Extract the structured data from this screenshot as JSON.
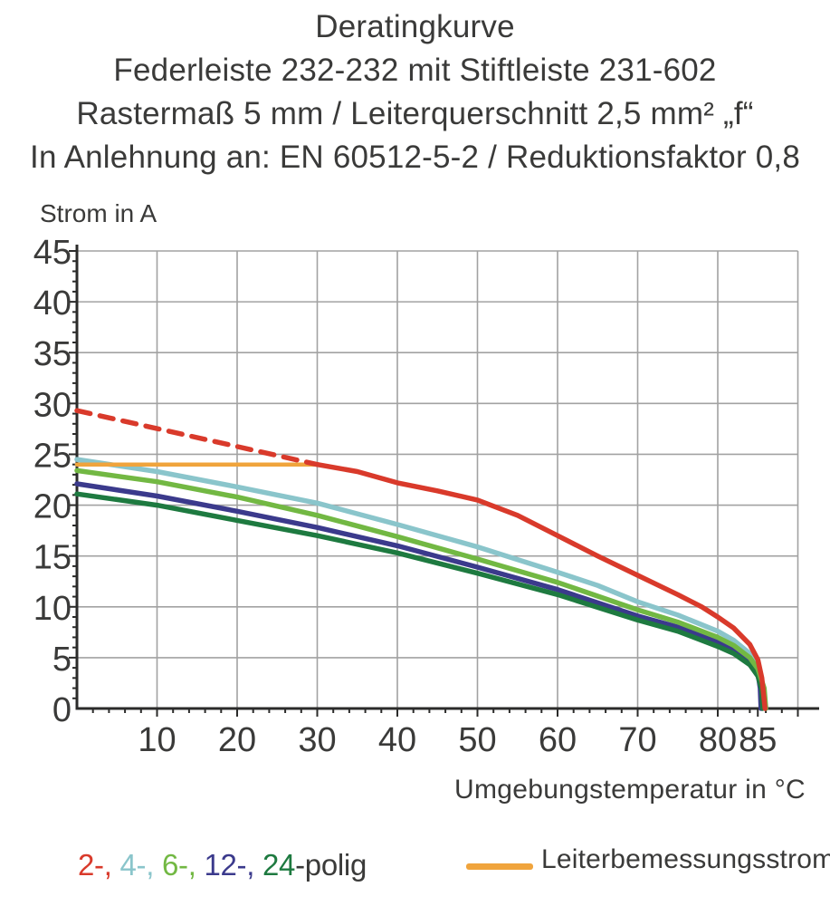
{
  "header": {
    "title": "Deratingkurve",
    "line2": "Federleiste 232-232 mit Stiftleiste 231-602",
    "line3": "Rastermaß 5 mm / Leiterquerschnitt 2,5 mm² „f“",
    "line4": "In Anlehnung an: EN 60512-5-2 / Reduktionsfaktor 0,8"
  },
  "chart_data": {
    "type": "line",
    "title": "Deratingkurve",
    "xlabel": "Umgebungstemperatur in °C",
    "ylabel": "Strom in A",
    "xlim": [
      0,
      90
    ],
    "ylim": [
      0,
      45
    ],
    "x_ticks": [
      10,
      20,
      30,
      40,
      50,
      60,
      70,
      80,
      85
    ],
    "y_ticks": [
      0,
      5,
      10,
      15,
      20,
      25,
      30,
      35,
      40,
      45
    ],
    "x_gridlines": [
      10,
      20,
      30,
      40,
      50,
      60,
      70,
      80,
      90
    ],
    "y_gridlines": [
      5,
      10,
      15,
      20,
      25,
      30,
      35,
      40,
      45
    ],
    "x_minor_step": 2,
    "y_minor_step": 1,
    "grid": true,
    "grid_color": "#a2a2a2",
    "axis_color": "#2b2b2a",
    "text_color": "#3a3a39",
    "legend_position": "bottom",
    "series": [
      {
        "id": "4-polig",
        "name": "4-polig",
        "color": "#8ac5cb",
        "dashed": false,
        "points": [
          [
            0,
            24.5
          ],
          [
            10,
            23.3
          ],
          [
            20,
            21.8
          ],
          [
            30,
            20.2
          ],
          [
            40,
            18.1
          ],
          [
            50,
            15.9
          ],
          [
            60,
            13.4
          ],
          [
            65,
            12.1
          ],
          [
            70,
            10.5
          ],
          [
            75,
            9.2
          ],
          [
            80,
            7.6
          ],
          [
            82,
            6.7
          ],
          [
            84,
            5.4
          ],
          [
            85,
            4.2
          ],
          [
            85.4,
            2.5
          ],
          [
            85.5,
            0
          ]
        ]
      },
      {
        "id": "12-polig",
        "name": "12-polig",
        "color": "#3b3a8c",
        "dashed": false,
        "points": [
          [
            0,
            22.1
          ],
          [
            10,
            20.9
          ],
          [
            20,
            19.4
          ],
          [
            30,
            17.8
          ],
          [
            40,
            16.0
          ],
          [
            50,
            13.9
          ],
          [
            60,
            11.7
          ],
          [
            70,
            9.1
          ],
          [
            75,
            8.0
          ],
          [
            80,
            6.5
          ],
          [
            82,
            5.7
          ],
          [
            84,
            4.6
          ],
          [
            85,
            3.5
          ],
          [
            85.3,
            2.0
          ],
          [
            85.4,
            0
          ]
        ]
      },
      {
        "id": "24-polig",
        "name": "24-polig",
        "color": "#1e7a40",
        "dashed": false,
        "points": [
          [
            0,
            21.1
          ],
          [
            10,
            20.0
          ],
          [
            20,
            18.5
          ],
          [
            30,
            17.0
          ],
          [
            40,
            15.3
          ],
          [
            50,
            13.3
          ],
          [
            60,
            11.2
          ],
          [
            70,
            8.7
          ],
          [
            75,
            7.6
          ],
          [
            80,
            6.1
          ],
          [
            82,
            5.4
          ],
          [
            84,
            4.3
          ],
          [
            85,
            3.2
          ],
          [
            85.5,
            1.8
          ],
          [
            85.6,
            0
          ]
        ]
      },
      {
        "id": "6-polig",
        "name": "6-polig",
        "color": "#72b843",
        "dashed": false,
        "points": [
          [
            0,
            23.4
          ],
          [
            10,
            22.3
          ],
          [
            20,
            20.8
          ],
          [
            30,
            19.0
          ],
          [
            40,
            16.9
          ],
          [
            50,
            14.7
          ],
          [
            60,
            12.4
          ],
          [
            70,
            9.7
          ],
          [
            75,
            8.5
          ],
          [
            80,
            7.0
          ],
          [
            82,
            6.2
          ],
          [
            84,
            5.0
          ],
          [
            85,
            3.9
          ],
          [
            85.8,
            2.0
          ],
          [
            86,
            0
          ]
        ]
      },
      {
        "id": "leiterbemessungsstrom",
        "name": "Leiterbemessungsstrom",
        "color": "#f0a43c",
        "dashed": false,
        "width": 4.5,
        "points": [
          [
            0,
            24
          ],
          [
            30,
            24
          ]
        ]
      },
      {
        "id": "2-polig-gestrichelt",
        "name": "2-polig (gestrichelt)",
        "color": "#d93a2b",
        "dashed": true,
        "points": [
          [
            0,
            29.3
          ],
          [
            30,
            24
          ]
        ]
      },
      {
        "id": "2-polig",
        "name": "2-polig",
        "color": "#d93a2b",
        "dashed": false,
        "points": [
          [
            30,
            24
          ],
          [
            35,
            23.3
          ],
          [
            40,
            22.2
          ],
          [
            45,
            21.4
          ],
          [
            50,
            20.5
          ],
          [
            55,
            19.0
          ],
          [
            60,
            17.0
          ],
          [
            65,
            15.0
          ],
          [
            70,
            13.1
          ],
          [
            75,
            11.2
          ],
          [
            78,
            10.0
          ],
          [
            80,
            9.0
          ],
          [
            82,
            7.9
          ],
          [
            84,
            6.3
          ],
          [
            85,
            4.8
          ],
          [
            85.5,
            3.0
          ],
          [
            85.9,
            0
          ]
        ]
      }
    ]
  },
  "legend": {
    "poles": {
      "segments": [
        {
          "text": "2-, ",
          "color": "#d93a2b"
        },
        {
          "text": "4-, ",
          "color": "#8ac5cb"
        },
        {
          "text": "6-, ",
          "color": "#72b843"
        },
        {
          "text": "12-, ",
          "color": "#3b3a8c"
        },
        {
          "text": "24",
          "color": "#1e7a40"
        },
        {
          "text": "-polig",
          "color": "#3a3a39"
        }
      ]
    },
    "rated_current": {
      "label": "Leiterbemessungsstrom",
      "color": "#f0a43c"
    }
  }
}
